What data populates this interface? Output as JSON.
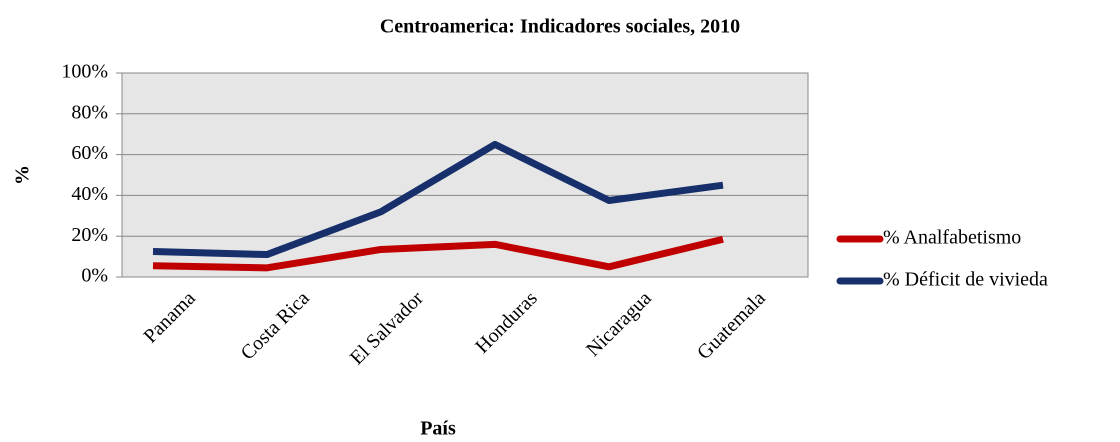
{
  "chart_data": {
    "type": "line",
    "title": "Centroamerica: Indicadores sociales, 2010",
    "x_label": "País",
    "y_label": "%",
    "categories": [
      "Panama",
      "Costa Rica",
      "El Salvador",
      "Honduras",
      "Nicaragua",
      "Guatemala"
    ],
    "series": [
      {
        "name": "% Analfabetismo",
        "color": "#c00000",
        "values": [
          5.5,
          4.5,
          13.5,
          16,
          5,
          18.5
        ]
      },
      {
        "name": "% Déficit de vivieda",
        "color": "#17306b",
        "values": [
          12.5,
          11,
          32,
          65,
          37.5,
          45
        ]
      }
    ],
    "ylim": [
      0,
      100
    ],
    "yticks": [
      {
        "value": 0,
        "label": "0%"
      },
      {
        "value": 20,
        "label": "20%"
      },
      {
        "value": 40,
        "label": "40%"
      },
      {
        "value": 60,
        "label": "60%"
      },
      {
        "value": 80,
        "label": "80%"
      },
      {
        "value": 100,
        "label": "100%"
      }
    ],
    "grid": true,
    "legend": "right"
  }
}
